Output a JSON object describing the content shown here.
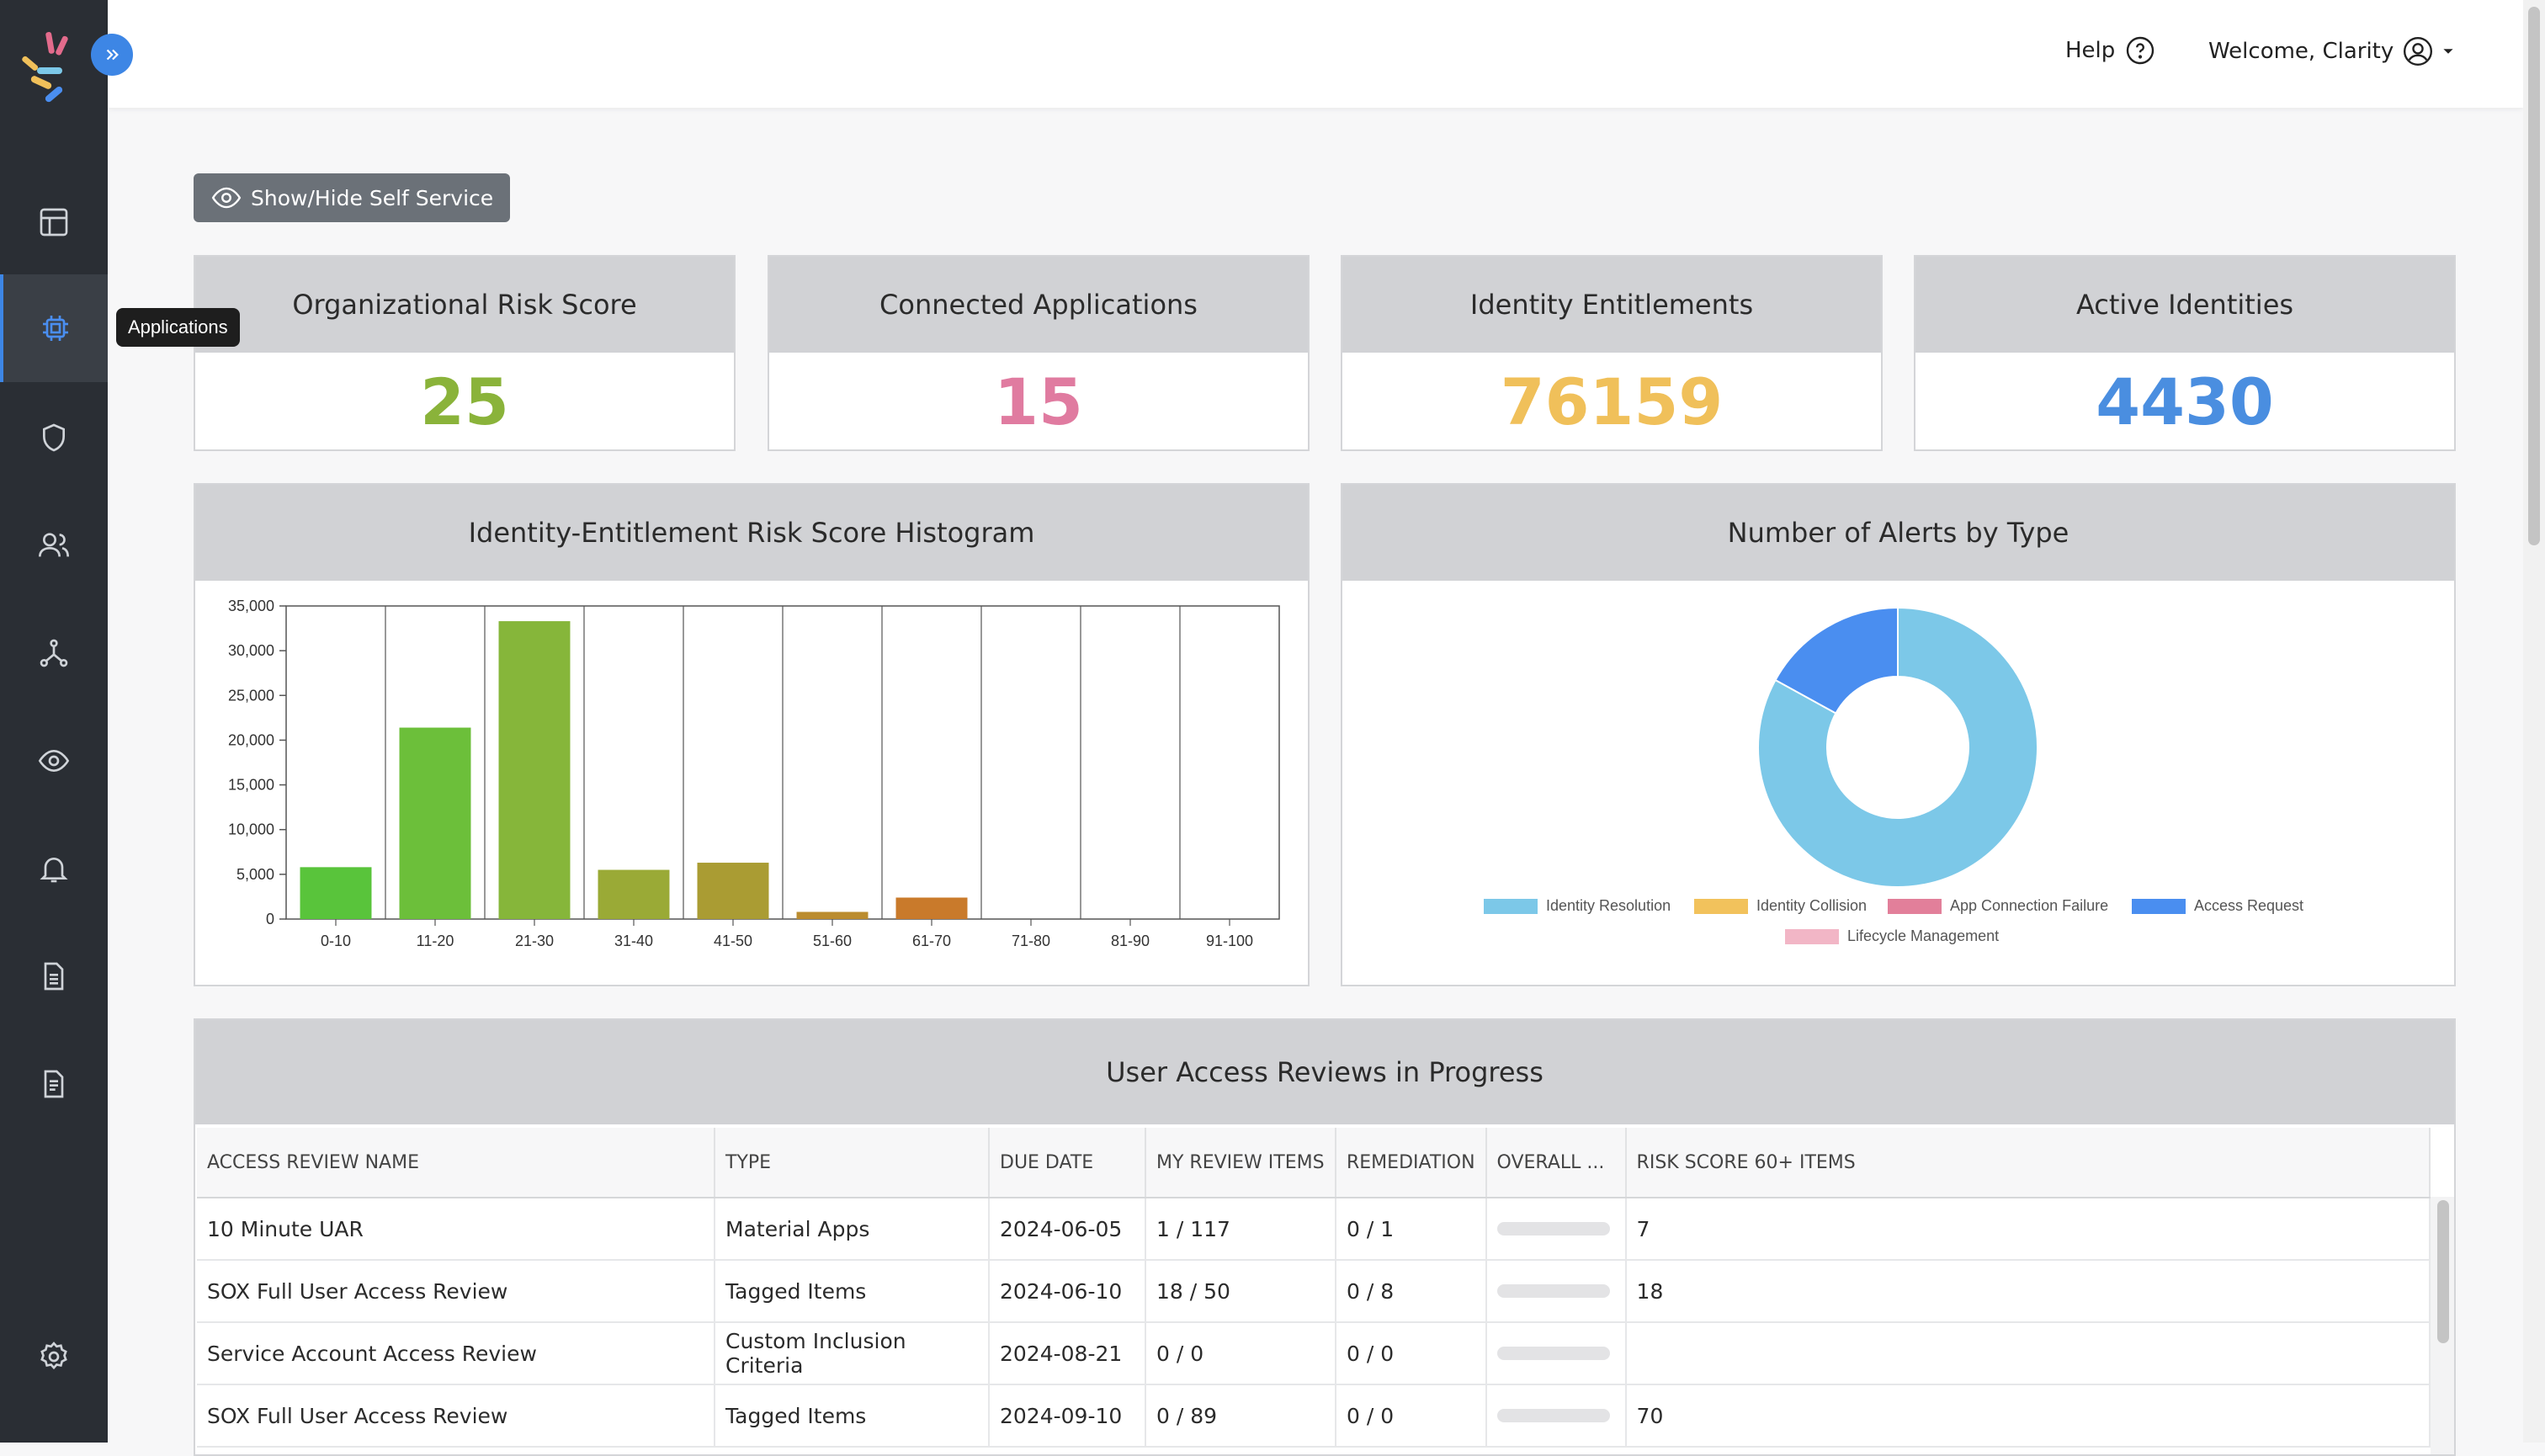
{
  "header": {
    "help_label": "Help",
    "welcome_label": "Welcome, Clarity"
  },
  "sidebar": {
    "tooltip": "Applications",
    "items": [
      {
        "icon": "dashboard-icon"
      },
      {
        "icon": "chip-icon"
      },
      {
        "icon": "shield-icon"
      },
      {
        "icon": "users-icon"
      },
      {
        "icon": "network-icon"
      },
      {
        "icon": "eye-icon"
      },
      {
        "icon": "bell-icon"
      },
      {
        "icon": "document-icon"
      },
      {
        "icon": "report-icon"
      },
      {
        "icon": "gear-icon"
      }
    ]
  },
  "self_service_label": "Show/Hide Self Service",
  "stats": [
    {
      "title": "Organizational Risk Score",
      "value": "25",
      "color": "#8ab33a"
    },
    {
      "title": "Connected Applications",
      "value": "15",
      "color": "#e07ba0"
    },
    {
      "title": "Identity Entitlements",
      "value": "76159",
      "color": "#f0c05a"
    },
    {
      "title": "Active Identities",
      "value": "4430",
      "color": "#4a8ee0"
    }
  ],
  "histogram": {
    "title": "Identity-Entitlement Risk Score Histogram",
    "chart_data": {
      "type": "bar",
      "categories": [
        "0-10",
        "11-20",
        "21-30",
        "31-40",
        "41-50",
        "51-60",
        "61-70",
        "71-80",
        "81-90",
        "91-100"
      ],
      "values": [
        5800,
        21400,
        33300,
        5500,
        6300,
        800,
        2400,
        0,
        0,
        0
      ],
      "colors": [
        "#59c43b",
        "#6cbf3a",
        "#86b63a",
        "#9aaa36",
        "#aa9c33",
        "#bb8c2f",
        "#c97a2b",
        "#c97a2b",
        "#c97a2b",
        "#c97a2b"
      ],
      "ylim": [
        0,
        35000
      ],
      "yticks": [
        0,
        5000,
        10000,
        15000,
        20000,
        25000,
        30000,
        35000
      ],
      "ytick_labels": [
        "0",
        "5,000",
        "10,000",
        "15,000",
        "20,000",
        "25,000",
        "30,000",
        "35,000"
      ]
    }
  },
  "alerts": {
    "title": "Number of Alerts by Type",
    "chart_data": {
      "type": "pie",
      "labels": [
        "Identity Resolution",
        "Identity Collision",
        "App Connection Failure",
        "Access Request",
        "Lifecycle Management"
      ],
      "values": [
        83,
        0,
        0,
        17,
        0
      ],
      "colors": [
        "#7cc8e8",
        "#f2c25c",
        "#e27f9a",
        "#4a8ef0",
        "#f2b6c6"
      ]
    }
  },
  "reviews": {
    "title": "User Access Reviews in Progress",
    "columns": [
      "ACCESS REVIEW NAME",
      "TYPE",
      "DUE DATE",
      "MY REVIEW ITEMS",
      "REMEDIATION",
      "OVERALL ...",
      "RISK SCORE 60+ ITEMS"
    ],
    "rows": [
      {
        "name": "10 Minute UAR",
        "type": "Material Apps",
        "due": "2024-06-05",
        "my": "1 / 117",
        "rem": "0 / 1",
        "risk": "7"
      },
      {
        "name": "SOX Full User Access Review",
        "type": "Tagged Items",
        "due": "2024-06-10",
        "my": "18 / 50",
        "rem": "0 / 8",
        "risk": "18"
      },
      {
        "name": "Service Account Access Review",
        "type": "Custom Inclusion Criteria",
        "due": "2024-08-21",
        "my": "0 / 0",
        "rem": "0 / 0",
        "risk": ""
      },
      {
        "name": "SOX Full User Access Review",
        "type": "Tagged Items",
        "due": "2024-09-10",
        "my": "0 / 89",
        "rem": "0 / 0",
        "risk": "70"
      }
    ]
  }
}
